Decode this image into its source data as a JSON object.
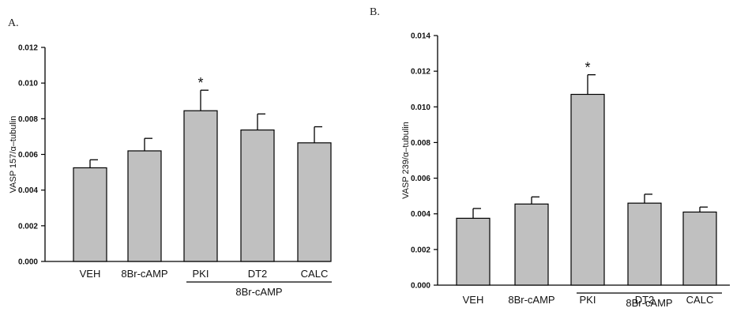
{
  "chart_data": [
    {
      "panel_label": "A.",
      "type": "bar",
      "categories": [
        "VEH",
        "8Br-cAMP",
        "PKI",
        "DT2",
        "CALC"
      ],
      "values": [
        0.00525,
        0.0062,
        0.00845,
        0.00737,
        0.00665
      ],
      "errors": [
        0.00045,
        0.0007,
        0.00115,
        0.0009,
        0.0009
      ],
      "significance": [
        "",
        "",
        "*",
        "",
        ""
      ],
      "ylabel": "VASP 157/α–tubulin",
      "ylim": [
        0,
        0.012
      ],
      "yticks": [
        "0.000",
        "0.002",
        "0.004",
        "0.006",
        "0.008",
        "0.010",
        "0.012"
      ],
      "group_label": "8Br-cAMP",
      "group_categories": [
        "PKI",
        "DT2",
        "CALC"
      ],
      "grid": false,
      "bar_color": "#c0c0c0"
    },
    {
      "panel_label": "B.",
      "type": "bar",
      "categories": [
        "VEH",
        "8Br-cAMP",
        "PKI",
        "DT2",
        "CALC"
      ],
      "values": [
        0.00375,
        0.00455,
        0.0107,
        0.0046,
        0.0041
      ],
      "errors": [
        0.00055,
        0.0004,
        0.0011,
        0.0005,
        0.00028
      ],
      "significance": [
        "",
        "",
        "*",
        "",
        ""
      ],
      "ylabel": "VASP 239/α–tubulin",
      "ylim": [
        0,
        0.014
      ],
      "yticks": [
        "0.000",
        "0.002",
        "0.004",
        "0.006",
        "0.008",
        "0.010",
        "0.012",
        "0.014"
      ],
      "group_label": "8Br-cAMP",
      "group_categories": [
        "PKI",
        "DT2",
        "CALC"
      ],
      "grid": false,
      "bar_color": "#c0c0c0"
    }
  ]
}
